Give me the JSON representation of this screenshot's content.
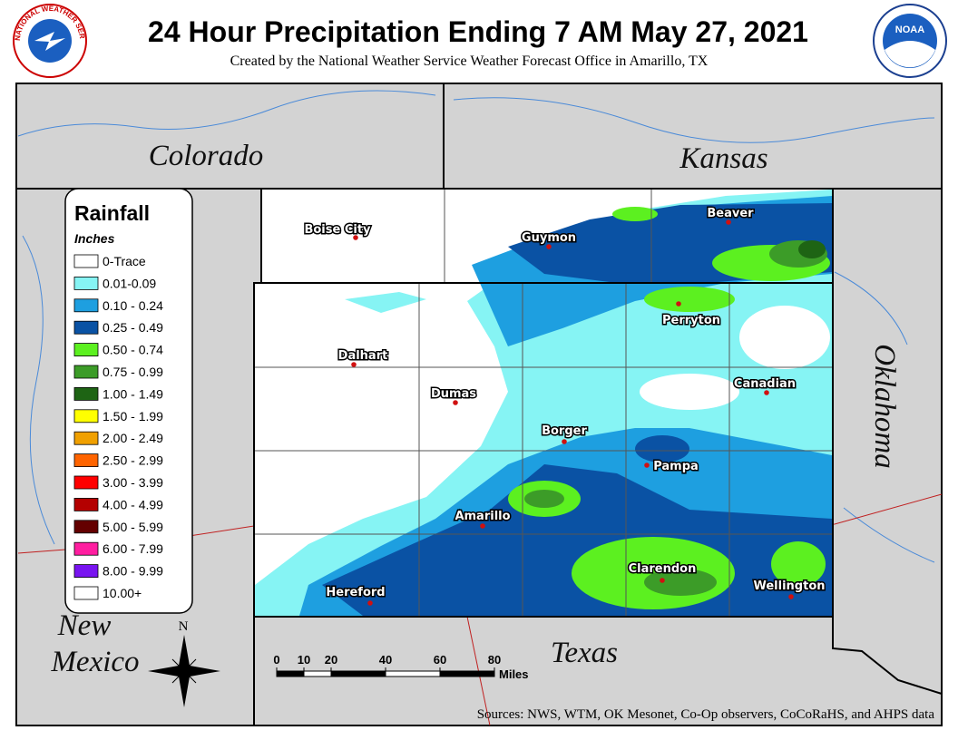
{
  "header": {
    "title": "24 Hour Precipitation Ending 7 AM May 27, 2021",
    "subtitle": "Created by the National Weather Service Weather Forecast Office in Amarillo, TX",
    "left_logo": "NATIONAL WEATHER SERVICE",
    "right_logo": "NOAA"
  },
  "states": [
    "Colorado",
    "Kansas",
    "Oklahoma",
    "New Mexico",
    "Texas"
  ],
  "legend": {
    "title": "Rainfall",
    "units": "Inches",
    "items": [
      {
        "label": "0-Trace",
        "color": "#ffffff"
      },
      {
        "label": "0.01-0.09",
        "color": "#86f4f4"
      },
      {
        "label": "0.10 - 0.24",
        "color": "#1e9fe0"
      },
      {
        "label": "0.25 - 0.49",
        "color": "#0a52a4"
      },
      {
        "label": "0.50 - 0.74",
        "color": "#5cf020"
      },
      {
        "label": "0.75 - 0.99",
        "color": "#3c9c28"
      },
      {
        "label": "1.00 - 1.49",
        "color": "#1e6414"
      },
      {
        "label": "1.50 - 1.99",
        "color": "#ffff00"
      },
      {
        "label": "2.00 - 2.49",
        "color": "#f0a000"
      },
      {
        "label": "2.50 - 2.99",
        "color": "#ff6400"
      },
      {
        "label": "3.00 - 3.99",
        "color": "#ff0000"
      },
      {
        "label": "4.00 - 4.99",
        "color": "#b40000"
      },
      {
        "label": "5.00 - 5.99",
        "color": "#640000"
      },
      {
        "label": "6.00 - 7.99",
        "color": "#ff1ea0"
      },
      {
        "label": "8.00 - 9.99",
        "color": "#7814f0"
      },
      {
        "label": "10.00+",
        "color": "#ffffff"
      }
    ]
  },
  "cities": [
    "Boise City",
    "Guymon",
    "Beaver",
    "Perryton",
    "Dalhart",
    "Dumas",
    "Canadian",
    "Borger",
    "Pampa",
    "Amarillo",
    "Clarendon",
    "Wellington",
    "Hereford"
  ],
  "scale_bar": {
    "ticks": [
      0,
      10,
      20,
      40,
      60,
      80
    ],
    "units": "Miles"
  },
  "compass": "N",
  "sources": "Sources:  NWS, WTM, OK Mesonet, Co-Op observers, CoCoRaHS, and AHPS data"
}
